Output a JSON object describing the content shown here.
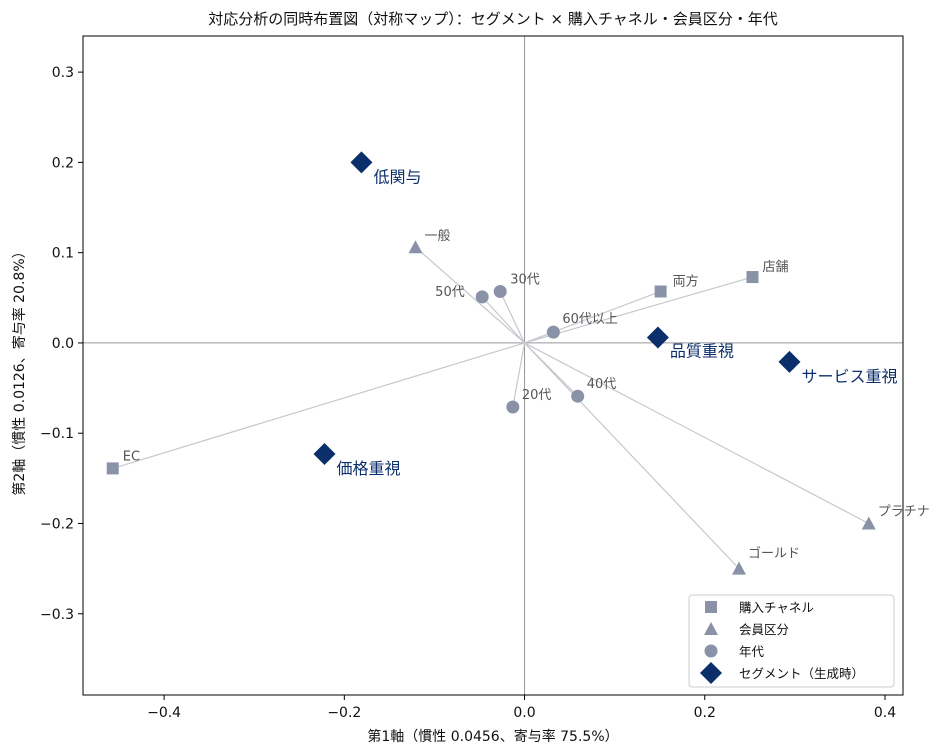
{
  "chart_data": {
    "type": "scatter",
    "title": "対応分析の同時布置図（対称マップ）：セグメント × 購入チャネル・会員区分・年代",
    "xlabel": "第1軸（慣性 0.0456、寄与率 75.5%）",
    "ylabel": "第2軸（慣性 0.0126、寄与率 20.8%）",
    "xlim": [
      -0.49,
      0.42
    ],
    "ylim": [
      -0.39,
      0.34
    ],
    "xticks": [
      -0.4,
      -0.2,
      0.0,
      0.2,
      0.4
    ],
    "xtick_labels": [
      "−0.4",
      "−0.2",
      "0.0",
      "0.2",
      "0.4"
    ],
    "yticks": [
      0.3,
      0.2,
      0.1,
      0.0,
      -0.1,
      -0.2,
      -0.3
    ],
    "ytick_labels": [
      "0.3",
      "0.2",
      "0.1",
      "0.0",
      "−0.1",
      "−0.2",
      "−0.3"
    ],
    "grid": false,
    "legend_position": "bottom-right",
    "series": [
      {
        "name": "購入チャネル",
        "marker": "square",
        "color": "#8a92a8",
        "points": [
          {
            "label": "店舗",
            "x": 0.253,
            "y": 0.073
          },
          {
            "label": "両方",
            "x": 0.151,
            "y": 0.057
          },
          {
            "label": "EC",
            "x": -0.457,
            "y": -0.139
          }
        ]
      },
      {
        "name": "会員区分",
        "marker": "triangle",
        "color": "#8a92a8",
        "points": [
          {
            "label": "一般",
            "x": -0.121,
            "y": 0.106
          },
          {
            "label": "プラチナ",
            "x": 0.382,
            "y": -0.2
          },
          {
            "label": "ゴールド",
            "x": 0.238,
            "y": -0.25
          }
        ]
      },
      {
        "name": "年代",
        "marker": "circle",
        "color": "#8a92a8",
        "points": [
          {
            "label": "30代",
            "x": -0.027,
            "y": 0.057
          },
          {
            "label": "50代",
            "x": -0.047,
            "y": 0.051
          },
          {
            "label": "60代以上",
            "x": 0.032,
            "y": 0.012
          },
          {
            "label": "40代",
            "x": 0.059,
            "y": -0.059
          },
          {
            "label": "20代",
            "x": -0.013,
            "y": -0.071
          }
        ]
      },
      {
        "name": "セグメント（生成時）",
        "marker": "diamond",
        "color": "#0b2f6b",
        "points": [
          {
            "label": "低関与",
            "x": -0.181,
            "y": 0.2
          },
          {
            "label": "品質重視",
            "x": 0.148,
            "y": 0.006
          },
          {
            "label": "サービス重視",
            "x": 0.294,
            "y": -0.021
          },
          {
            "label": "価格重視",
            "x": -0.222,
            "y": -0.123
          }
        ]
      }
    ]
  }
}
